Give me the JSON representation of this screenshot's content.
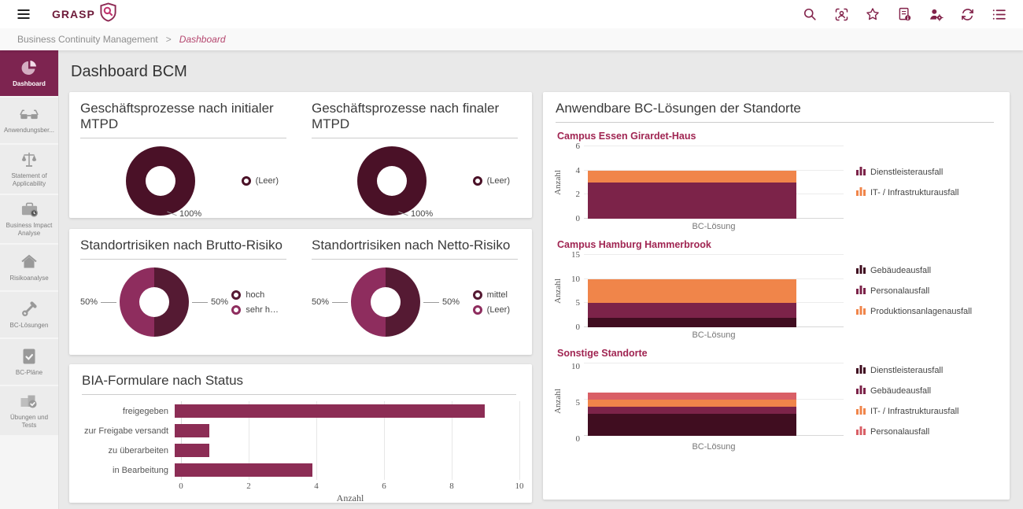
{
  "topbar": {
    "brand": "GRASP",
    "menu_icon": "menu-icon",
    "logo_icon": "shield-magnifier-icon",
    "icons": [
      "search-icon",
      "face-scan-icon",
      "star-icon",
      "document-info-icon",
      "user-settings-icon",
      "refresh-icon",
      "list-icon"
    ]
  },
  "breadcrumb": {
    "section": "Business Continuity Management",
    "separator": ">",
    "current": "Dashboard"
  },
  "sidebar": {
    "items": [
      {
        "label": "Dashboard",
        "icon": "pie-chart-icon",
        "active": true
      },
      {
        "label": "Anwendungsber...",
        "icon": "glasses-icon",
        "active": false
      },
      {
        "label": "Statement of Applicability",
        "icon": "scales-icon",
        "active": false
      },
      {
        "label": "Business Impact Analyse",
        "icon": "briefcase-clock-icon",
        "active": false
      },
      {
        "label": "Risikoanalyse",
        "icon": "home-icon",
        "active": false
      },
      {
        "label": "BC-Lösungen",
        "icon": "wrench-icon",
        "active": false
      },
      {
        "label": "BC-Pläne",
        "icon": "document-check-icon",
        "active": false
      },
      {
        "label": "Übungen und Tests",
        "icon": "building-check-icon",
        "active": false
      }
    ]
  },
  "page_title": "Dashboard BCM",
  "colors": {
    "accent_dark": "#4a1127",
    "accent_plum": "#7c2349",
    "accent_magenta": "#8e2d5e",
    "accent_orange": "#f0854a",
    "accent_salmon": "#d95f66",
    "bar_maroon": "#8c2d55",
    "sidebar_active": "#7d2450",
    "subtitle_crimson": "#a02552"
  },
  "chart_data": [
    {
      "type": "pie",
      "donut": true,
      "title": "Geschäftsprozesse nach initialer MTPD",
      "segments": [
        {
          "label": "(Leer)",
          "value": 100,
          "percent_label": "100%",
          "color": "#4a1127"
        }
      ]
    },
    {
      "type": "pie",
      "donut": true,
      "title": "Geschäftsprozesse nach finaler MTPD",
      "segments": [
        {
          "label": "(Leer)",
          "value": 100,
          "percent_label": "100%",
          "color": "#4a1127"
        }
      ]
    },
    {
      "type": "pie",
      "donut": true,
      "title": "Standortrisiken nach Brutto-Risiko",
      "segments": [
        {
          "label": "hoch",
          "value": 50,
          "percent_label": "50%",
          "color": "#551a33"
        },
        {
          "label": "sehr h…",
          "value": 50,
          "percent_label": "50%",
          "color": "#8e2d5e"
        }
      ]
    },
    {
      "type": "pie",
      "donut": true,
      "title": "Standortrisiken nach Netto-Risiko",
      "segments": [
        {
          "label": "mittel",
          "value": 50,
          "percent_label": "50%",
          "color": "#551a33"
        },
        {
          "label": "(Leer)",
          "value": 50,
          "percent_label": "50%",
          "color": "#8e2d5e"
        }
      ]
    },
    {
      "type": "bar",
      "orientation": "horizontal",
      "title": "BIA-Formulare nach Status",
      "categories": [
        "freigegeben",
        "zur Freigabe versandt",
        "zu überarbeiten",
        "in Bearbeitung"
      ],
      "values": [
        9,
        1,
        1,
        4
      ],
      "color": "#8c2d55",
      "xlabel": "Anzahl",
      "xlim": [
        0,
        10
      ],
      "xticks": [
        0,
        2,
        4,
        6,
        8,
        10
      ],
      "grid": true
    },
    {
      "type": "bar",
      "stacked": true,
      "title": "Anwendbare BC-Lösungen der Standorte",
      "charts": [
        {
          "subtitle": "Campus Essen Girardet-Haus",
          "ylabel": "Anzahl",
          "xlabel": "BC-Lösung",
          "ylim": [
            0,
            6
          ],
          "yticks": [
            0,
            2,
            4,
            6
          ],
          "series": [
            {
              "name": "Dienstleisterausfall",
              "value": 3,
              "color": "#7c2349"
            },
            {
              "name": "IT- / Infrastrukturausfall",
              "value": 1,
              "color": "#f0854a"
            }
          ]
        },
        {
          "subtitle": "Campus Hamburg Hammerbrook",
          "ylabel": "Anzahl",
          "xlabel": "BC-Lösung",
          "ylim": [
            0,
            15
          ],
          "yticks": [
            0,
            5,
            10,
            15
          ],
          "series": [
            {
              "name": "Gebäudeausfall",
              "value": 2,
              "color": "#400d20"
            },
            {
              "name": "Personalausfall",
              "value": 3,
              "color": "#7c2349"
            },
            {
              "name": "Produktionsanlagenausfall",
              "value": 5,
              "color": "#f0854a"
            }
          ]
        },
        {
          "subtitle": "Sonstige Standorte",
          "ylabel": "Anzahl",
          "xlabel": "BC-Lösung",
          "ylim": [
            0,
            10
          ],
          "yticks": [
            0,
            5,
            10
          ],
          "series": [
            {
              "name": "Dienstleisterausfall",
              "value": 3,
              "color": "#400d20"
            },
            {
              "name": "Gebäudeausfall",
              "value": 1,
              "color": "#7c2349"
            },
            {
              "name": "IT- / Infrastrukturausfall",
              "value": 1,
              "color": "#f0854a"
            },
            {
              "name": "Personalausfall",
              "value": 1,
              "color": "#d95f66"
            }
          ]
        }
      ]
    }
  ]
}
